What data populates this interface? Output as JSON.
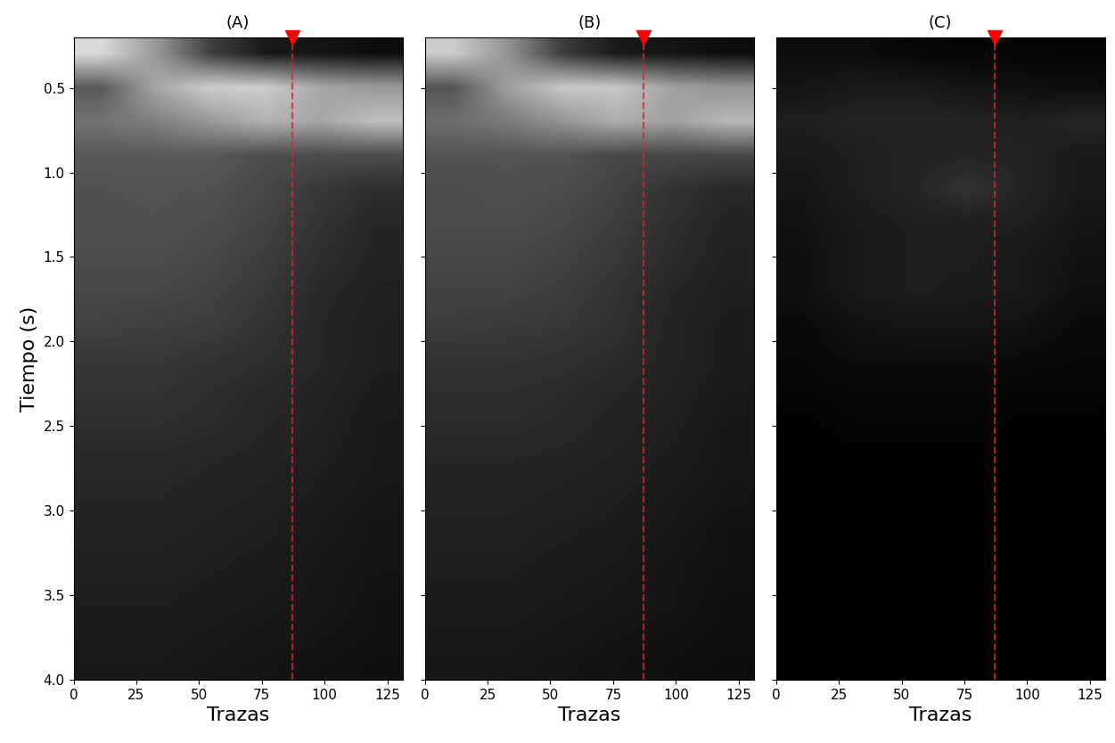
{
  "chart_data": [
    {
      "type": "heatmap",
      "title": "(A)",
      "x_label": "Trazas",
      "y_label": "Tiempo (s)",
      "xlim": [
        0,
        131
      ],
      "ylim": [
        4.0,
        0.2
      ],
      "xticks": [
        0,
        25,
        50,
        75,
        100,
        125
      ],
      "yticks": [
        {
          "value": 0.5,
          "label": "0.5"
        },
        {
          "value": 1.0,
          "label": "1.0"
        },
        {
          "value": 1.5,
          "label": "1.5"
        },
        {
          "value": 2.0,
          "label": "2.0"
        },
        {
          "value": 2.5,
          "label": "2.5"
        },
        {
          "value": 3.0,
          "label": "3.0"
        },
        {
          "value": 3.5,
          "label": "3.5"
        },
        {
          "value": 4.0,
          "label": "4.0"
        }
      ],
      "color_range": [
        0,
        1
      ],
      "marker_trace": 87,
      "cells": [
        [
          0.85,
          0.6,
          0.25,
          0.1,
          0.08,
          0.05
        ],
        [
          0.35,
          0.65,
          0.8,
          0.8,
          0.65,
          0.6
        ],
        [
          0.45,
          0.5,
          0.6,
          0.7,
          0.65,
          0.75
        ],
        [
          0.35,
          0.35,
          0.35,
          0.3,
          0.3,
          0.3
        ],
        [
          0.32,
          0.33,
          0.32,
          0.28,
          0.22,
          0.18
        ],
        [
          0.32,
          0.32,
          0.3,
          0.26,
          0.2,
          0.15
        ],
        [
          0.3,
          0.3,
          0.28,
          0.24,
          0.18,
          0.14
        ],
        [
          0.28,
          0.28,
          0.26,
          0.22,
          0.16,
          0.13
        ],
        [
          0.26,
          0.25,
          0.24,
          0.2,
          0.15,
          0.12
        ],
        [
          0.22,
          0.22,
          0.2,
          0.18,
          0.15,
          0.12
        ],
        [
          0.2,
          0.2,
          0.18,
          0.16,
          0.14,
          0.11
        ],
        [
          0.18,
          0.18,
          0.17,
          0.15,
          0.13,
          0.1
        ],
        [
          0.16,
          0.16,
          0.15,
          0.14,
          0.12,
          0.1
        ],
        [
          0.15,
          0.15,
          0.14,
          0.13,
          0.11,
          0.09
        ],
        [
          0.14,
          0.14,
          0.13,
          0.12,
          0.1,
          0.08
        ],
        [
          0.13,
          0.13,
          0.12,
          0.11,
          0.09,
          0.08
        ],
        [
          0.12,
          0.12,
          0.11,
          0.1,
          0.09,
          0.07
        ],
        [
          0.11,
          0.11,
          0.1,
          0.09,
          0.08,
          0.07
        ],
        [
          0.1,
          0.1,
          0.09,
          0.08,
          0.07,
          0.06
        ]
      ]
    },
    {
      "type": "heatmap",
      "title": "(B)",
      "x_label": "Trazas",
      "tick_labels": "x",
      "xlim": [
        0,
        131
      ],
      "ylim": [
        4.0,
        0.2
      ],
      "xticks": [
        0,
        25,
        50,
        75,
        100,
        125
      ],
      "yticks": [
        0.5,
        1.0,
        1.5,
        2.0,
        2.5,
        3.0,
        3.5,
        4.0
      ],
      "color_range": [
        0,
        1
      ],
      "marker_trace": 87,
      "cells": [
        [
          0.8,
          0.58,
          0.24,
          0.1,
          0.08,
          0.05
        ],
        [
          0.33,
          0.62,
          0.78,
          0.78,
          0.63,
          0.58
        ],
        [
          0.43,
          0.48,
          0.58,
          0.68,
          0.63,
          0.72
        ],
        [
          0.33,
          0.33,
          0.33,
          0.28,
          0.28,
          0.28
        ],
        [
          0.3,
          0.31,
          0.3,
          0.26,
          0.2,
          0.16
        ],
        [
          0.3,
          0.3,
          0.28,
          0.24,
          0.18,
          0.14
        ],
        [
          0.28,
          0.28,
          0.26,
          0.22,
          0.17,
          0.13
        ],
        [
          0.26,
          0.26,
          0.24,
          0.2,
          0.15,
          0.12
        ],
        [
          0.24,
          0.23,
          0.22,
          0.19,
          0.14,
          0.11
        ],
        [
          0.2,
          0.2,
          0.19,
          0.17,
          0.14,
          0.11
        ],
        [
          0.18,
          0.18,
          0.17,
          0.15,
          0.13,
          0.1
        ],
        [
          0.17,
          0.17,
          0.16,
          0.14,
          0.12,
          0.09
        ],
        [
          0.15,
          0.15,
          0.14,
          0.13,
          0.11,
          0.09
        ],
        [
          0.14,
          0.14,
          0.13,
          0.12,
          0.1,
          0.08
        ],
        [
          0.13,
          0.13,
          0.12,
          0.11,
          0.09,
          0.07
        ],
        [
          0.12,
          0.12,
          0.11,
          0.1,
          0.08,
          0.07
        ],
        [
          0.11,
          0.11,
          0.1,
          0.09,
          0.08,
          0.06
        ],
        [
          0.1,
          0.1,
          0.09,
          0.08,
          0.07,
          0.06
        ],
        [
          0.09,
          0.09,
          0.08,
          0.07,
          0.06,
          0.05
        ]
      ]
    },
    {
      "type": "heatmap",
      "title": "(C)",
      "x_label": "Trazas",
      "tick_labels": "x",
      "xlim": [
        0,
        131
      ],
      "ylim": [
        4.0,
        0.2
      ],
      "xticks": [
        0,
        25,
        50,
        75,
        100,
        125
      ],
      "yticks": [
        0.5,
        1.0,
        1.5,
        2.0,
        2.5,
        3.0,
        3.5,
        4.0
      ],
      "color_range": [
        0,
        1
      ],
      "marker_trace": 87,
      "cells": [
        [
          0.05,
          0.05,
          0.03,
          0.02,
          0.02,
          0.02
        ],
        [
          0.08,
          0.1,
          0.1,
          0.08,
          0.06,
          0.05
        ],
        [
          0.12,
          0.14,
          0.14,
          0.14,
          0.12,
          0.15
        ],
        [
          0.1,
          0.12,
          0.14,
          0.14,
          0.14,
          0.1
        ],
        [
          0.08,
          0.12,
          0.14,
          0.2,
          0.14,
          0.1
        ],
        [
          0.07,
          0.1,
          0.12,
          0.12,
          0.12,
          0.08
        ],
        [
          0.06,
          0.1,
          0.12,
          0.12,
          0.1,
          0.07
        ],
        [
          0.06,
          0.1,
          0.12,
          0.11,
          0.1,
          0.06
        ],
        [
          0.04,
          0.07,
          0.08,
          0.08,
          0.07,
          0.04
        ],
        [
          0.03,
          0.05,
          0.05,
          0.05,
          0.04,
          0.03
        ],
        [
          0.02,
          0.03,
          0.03,
          0.03,
          0.02,
          0.02
        ],
        [
          0.01,
          0.02,
          0.02,
          0.02,
          0.01,
          0.01
        ],
        [
          0.01,
          0.01,
          0.01,
          0.01,
          0.01,
          0.0
        ],
        [
          0.0,
          0.01,
          0.0,
          0.0,
          0.0,
          0.0
        ],
        [
          0.0,
          0.0,
          0.0,
          0.0,
          0.0,
          0.0
        ],
        [
          0.0,
          0.0,
          0.0,
          0.0,
          0.0,
          0.0
        ],
        [
          0.0,
          0.0,
          0.0,
          0.0,
          0.0,
          0.0
        ],
        [
          0.0,
          0.0,
          0.0,
          0.0,
          0.0,
          0.0
        ],
        [
          0.0,
          0.0,
          0.0,
          0.0,
          0.0,
          0.0
        ]
      ]
    }
  ]
}
